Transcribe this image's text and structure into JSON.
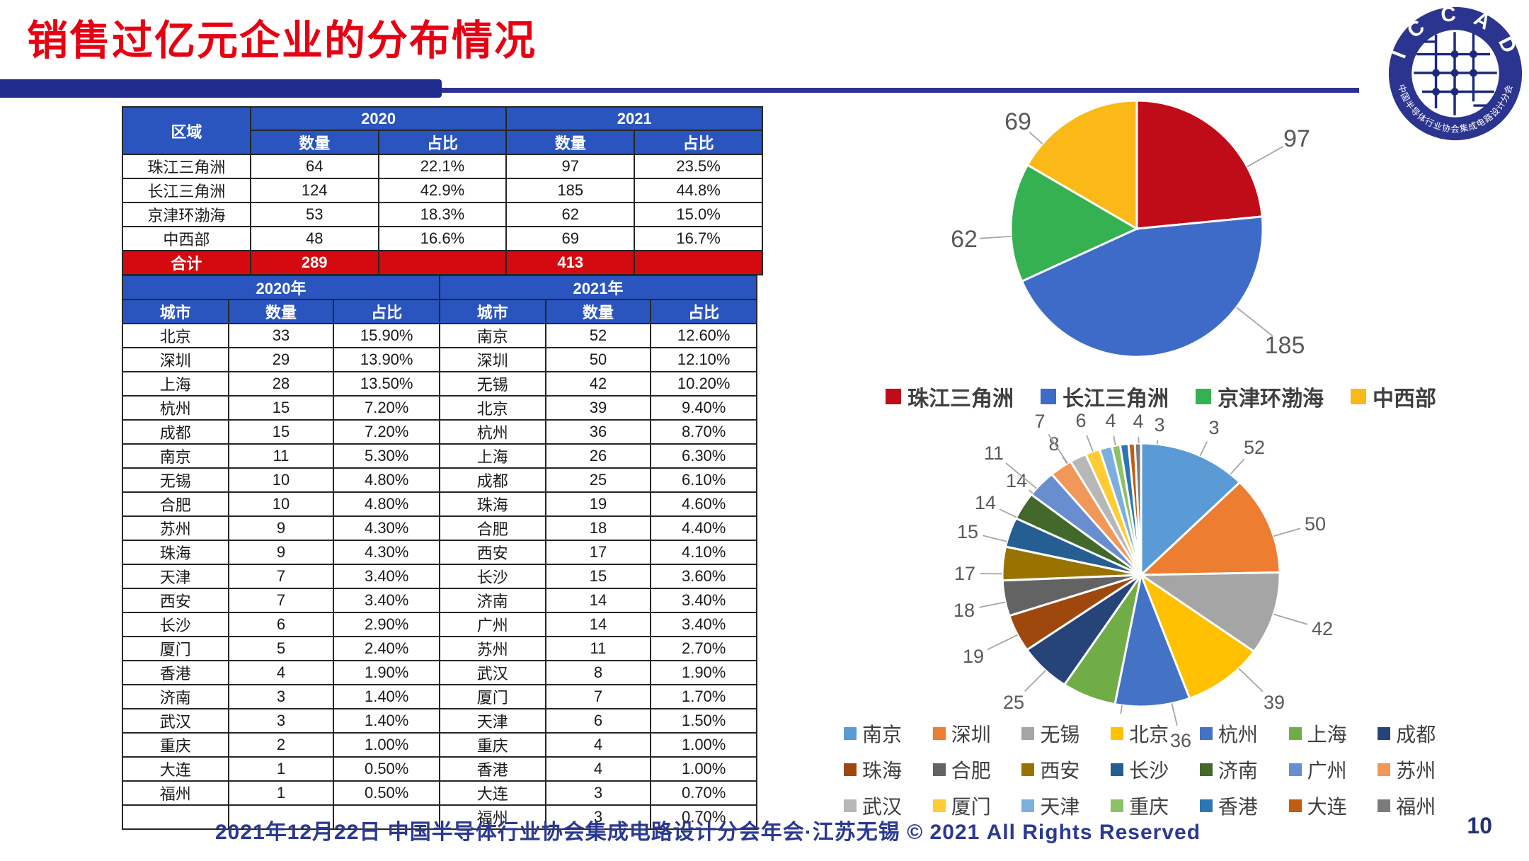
{
  "title": "销售过亿元企业的分布情况",
  "logo": {
    "arc_top": "I C C A D",
    "arc_bottom": "中国半导体行业协会集成电路设计分会"
  },
  "region_table": {
    "header": {
      "region": "区域",
      "y2020": "2020",
      "y2021": "2021",
      "count": "数量",
      "share": "占比"
    },
    "rows": [
      [
        "珠江三角洲",
        "64",
        "22.1%",
        "97",
        "23.5%"
      ],
      [
        "长江三角洲",
        "124",
        "42.9%",
        "185",
        "44.8%"
      ],
      [
        "京津环渤海",
        "53",
        "18.3%",
        "62",
        "15.0%"
      ],
      [
        "中西部",
        "48",
        "16.6%",
        "69",
        "16.7%"
      ]
    ],
    "total_row": [
      "合计",
      "289",
      "",
      "413",
      ""
    ]
  },
  "city_table": {
    "header": {
      "y2020": "2020年",
      "y2021": "2021年",
      "city": "城市",
      "count": "数量",
      "share": "占比"
    },
    "rows": [
      [
        "北京",
        "33",
        "15.90%",
        "南京",
        "52",
        "12.60%"
      ],
      [
        "深圳",
        "29",
        "13.90%",
        "深圳",
        "50",
        "12.10%"
      ],
      [
        "上海",
        "28",
        "13.50%",
        "无锡",
        "42",
        "10.20%"
      ],
      [
        "杭州",
        "15",
        "7.20%",
        "北京",
        "39",
        "9.40%"
      ],
      [
        "成都",
        "15",
        "7.20%",
        "杭州",
        "36",
        "8.70%"
      ],
      [
        "南京",
        "11",
        "5.30%",
        "上海",
        "26",
        "6.30%"
      ],
      [
        "无锡",
        "10",
        "4.80%",
        "成都",
        "25",
        "6.10%"
      ],
      [
        "合肥",
        "10",
        "4.80%",
        "珠海",
        "19",
        "4.60%"
      ],
      [
        "苏州",
        "9",
        "4.30%",
        "合肥",
        "18",
        "4.40%"
      ],
      [
        "珠海",
        "9",
        "4.30%",
        "西安",
        "17",
        "4.10%"
      ],
      [
        "天津",
        "7",
        "3.40%",
        "长沙",
        "15",
        "3.60%"
      ],
      [
        "西安",
        "7",
        "3.40%",
        "济南",
        "14",
        "3.40%"
      ],
      [
        "长沙",
        "6",
        "2.90%",
        "广州",
        "14",
        "3.40%"
      ],
      [
        "厦门",
        "5",
        "2.40%",
        "苏州",
        "11",
        "2.70%"
      ],
      [
        "香港",
        "4",
        "1.90%",
        "武汉",
        "8",
        "1.90%"
      ],
      [
        "济南",
        "3",
        "1.40%",
        "厦门",
        "7",
        "1.70%"
      ],
      [
        "武汉",
        "3",
        "1.40%",
        "天津",
        "6",
        "1.50%"
      ],
      [
        "重庆",
        "2",
        "1.00%",
        "重庆",
        "4",
        "1.00%"
      ],
      [
        "大连",
        "1",
        "0.50%",
        "香港",
        "4",
        "1.00%"
      ],
      [
        "福州",
        "1",
        "0.50%",
        "大连",
        "3",
        "0.70%"
      ],
      [
        "",
        "",
        "",
        "福州",
        "3",
        "0.70%"
      ]
    ]
  },
  "chart_data": [
    {
      "type": "pie",
      "title": "",
      "categories": [
        "珠江三角洲",
        "长江三角洲",
        "京津环渤海",
        "中西部"
      ],
      "values": [
        97,
        185,
        62,
        69
      ],
      "colors": [
        "#C00B18",
        "#3E6BC7",
        "#35B151",
        "#FBB917"
      ],
      "data_labels": "value",
      "legend_position": "bottom"
    },
    {
      "type": "pie",
      "title": "",
      "categories": [
        "南京",
        "深圳",
        "无锡",
        "北京",
        "杭州",
        "上海",
        "成都",
        "珠海",
        "合肥",
        "西安",
        "长沙",
        "济南",
        "广州",
        "苏州",
        "武汉",
        "厦门",
        "天津",
        "重庆",
        "香港",
        "大连",
        "福州"
      ],
      "values": [
        52,
        50,
        42,
        39,
        36,
        26,
        25,
        19,
        18,
        17,
        15,
        14,
        14,
        11,
        8,
        7,
        6,
        4,
        4,
        3,
        3
      ],
      "colors": [
        "#5B9BD5",
        "#ED7D31",
        "#A5A5A5",
        "#FFC000",
        "#4472C4",
        "#70AD47",
        "#264478",
        "#9E480E",
        "#636363",
        "#997300",
        "#255E91",
        "#43682B",
        "#698ED0",
        "#F1975A",
        "#B7B7B7",
        "#FFCD33",
        "#7CAFDD",
        "#8CC168",
        "#2E75B6",
        "#C55A11",
        "#7B7B7B"
      ],
      "data_labels": "value",
      "legend_position": "bottom"
    }
  ],
  "footer": {
    "text": "2021年12月22日 中国半导体行业协会集成电路设计分会年会·江苏无锡 © 2021 All Rights Reserved",
    "page": "10"
  }
}
